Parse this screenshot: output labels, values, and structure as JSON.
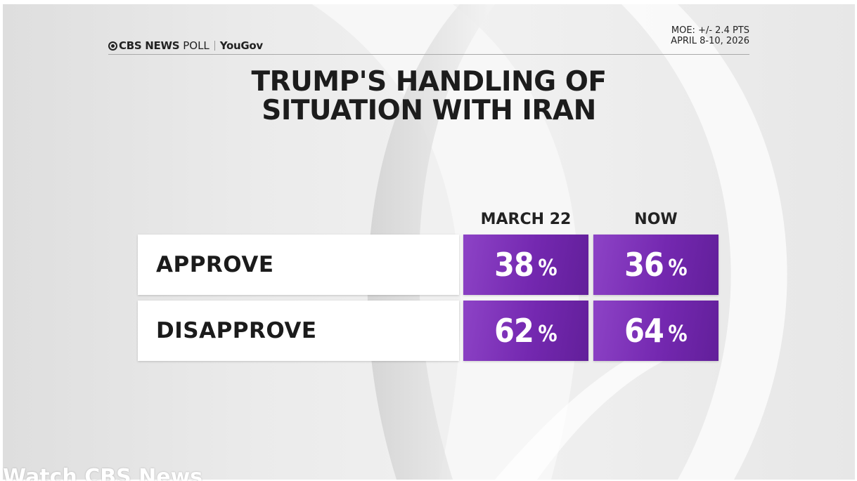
{
  "header": {
    "brand": "CBS NEWS",
    "poll_label": "POLL",
    "partner": "YouGov",
    "moe": "MOE: +/- 2.4 PTS",
    "dates": "APRIL 8-10, 2026"
  },
  "title_lines": [
    "TRUMP'S HANDLING OF",
    "SITUATION WITH IRAN"
  ],
  "colors": {
    "cell_purple": "#7428b0",
    "label_bg": "#ffffff",
    "text_dark": "#1c1c1c"
  },
  "icons": {
    "logo": "cbs-eye-icon"
  },
  "chart_data": {
    "type": "table",
    "title": "TRUMP'S HANDLING OF SITUATION WITH IRAN",
    "columns": [
      "MARCH 22",
      "NOW"
    ],
    "rows": [
      {
        "label": "APPROVE",
        "values": [
          38,
          36
        ]
      },
      {
        "label": "DISAPPROVE",
        "values": [
          62,
          64
        ]
      }
    ],
    "unit": "%"
  },
  "watermark": "Watch CBS News"
}
